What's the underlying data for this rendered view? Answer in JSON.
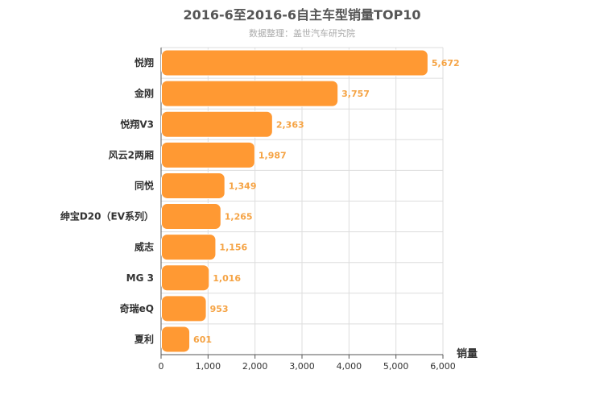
{
  "chart_data": {
    "type": "bar",
    "orientation": "horizontal",
    "title": "2016-6至2016-6自主车型销量TOP10",
    "subtitle": "数据整理：盖世汽车研究院",
    "categories": [
      "悦翔",
      "金刚",
      "悦翔V3",
      "风云2两厢",
      "同悦",
      "绅宝D20（EV系列）",
      "威志",
      "MG 3",
      "奇瑞eQ",
      "夏利"
    ],
    "values": [
      5672,
      3757,
      2363,
      1987,
      1349,
      1265,
      1156,
      1016,
      953,
      601
    ],
    "value_labels": [
      "5,672",
      "3,757",
      "2,363",
      "1,987",
      "1,349",
      "1,265",
      "1,156",
      "1,016",
      "953",
      "601"
    ],
    "xlabel": "销量",
    "ylabel": "",
    "xlim": [
      0,
      6000
    ],
    "ticks": [
      0,
      1000,
      2000,
      3000,
      4000,
      5000,
      6000
    ],
    "tick_labels": [
      "0",
      "1,000",
      "2,000",
      "3,000",
      "4,000",
      "5,000",
      "6,000"
    ],
    "grid": true,
    "bar_color": "#ff9933"
  }
}
